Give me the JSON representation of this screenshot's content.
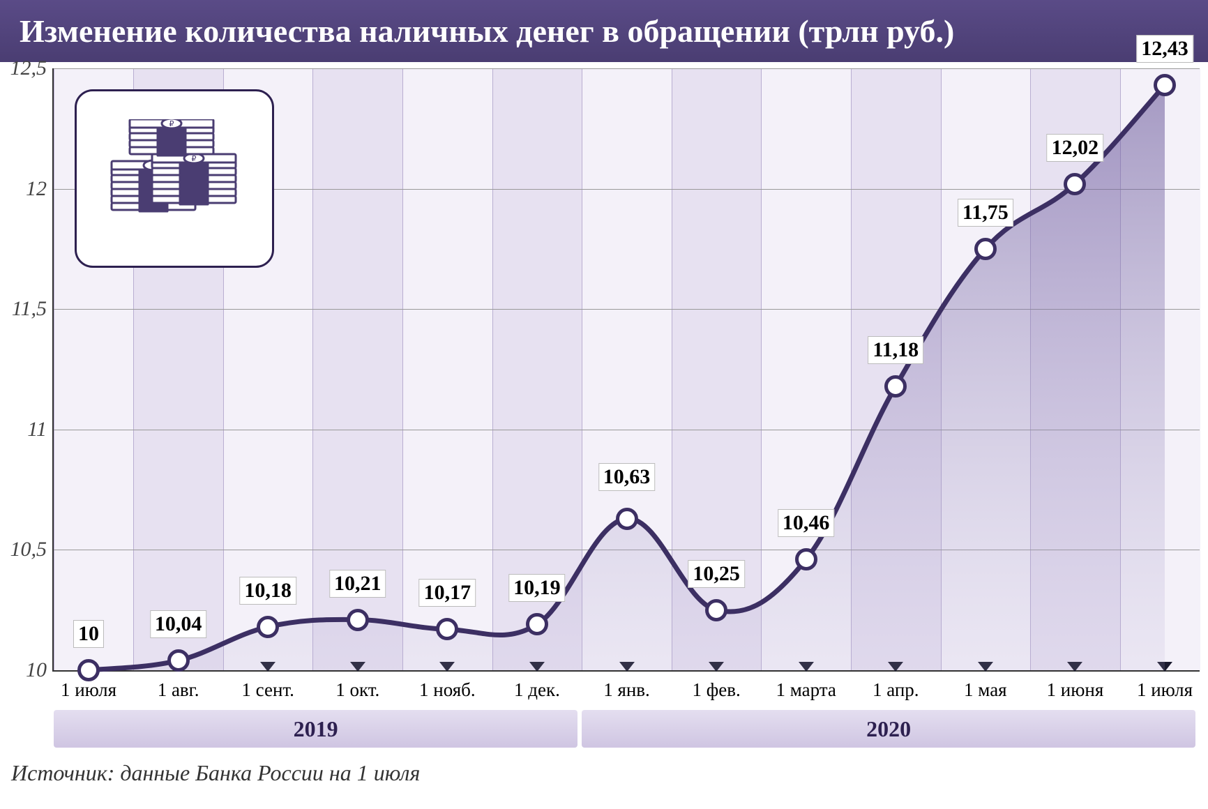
{
  "title": "Изменение количества наличных денег в обращении (трлн руб.)",
  "source": "Источник: данные Банка России на 1 июля",
  "chart": {
    "type": "line-area",
    "ylim": [
      10,
      12.5
    ],
    "yticks": [
      10,
      10.5,
      11,
      11.5,
      12,
      12.5
    ],
    "ytick_labels": [
      "10",
      "10,5",
      "11",
      "11,5",
      "12",
      "12,5"
    ],
    "ylabel_fontsize": 30,
    "xlabel_fontsize": 27,
    "title_fontsize": 46,
    "data_label_fontsize": 30,
    "background_color": "#ffffff",
    "stripe_light": "#f4f1f9",
    "stripe_dark": "#e7e1f1",
    "stripe_border": "#b9aed1",
    "grid_color": "#999999",
    "line_color": "#3c2f63",
    "line_width": 7,
    "marker_fill": "#ffffff",
    "marker_border": "#3c2f63",
    "marker_size": 22,
    "fill_gradient_top": "rgba(100,82,150,0.55)",
    "fill_gradient_bottom": "rgba(180,170,210,0.15)",
    "title_bg_top": "#5a4b87",
    "title_bg_bottom": "#4a3d72",
    "era_bg_top": "#e4def0",
    "era_bg_bottom": "#cfc5e2",
    "points": [
      {
        "x": "1 июля",
        "v": 10.0,
        "label": "10",
        "era": "2019"
      },
      {
        "x": "1 авг.",
        "v": 10.04,
        "label": "10,04",
        "era": "2019"
      },
      {
        "x": "1 сент.",
        "v": 10.18,
        "label": "10,18",
        "era": "2019"
      },
      {
        "x": "1 окт.",
        "v": 10.21,
        "label": "10,21",
        "era": "2019"
      },
      {
        "x": "1 нояб.",
        "v": 10.17,
        "label": "10,17",
        "era": "2019"
      },
      {
        "x": "1 дек.",
        "v": 10.19,
        "label": "10,19",
        "era": "2019"
      },
      {
        "x": "1 янв.",
        "v": 10.63,
        "label": "10,63",
        "era": "2020"
      },
      {
        "x": "1 фев.",
        "v": 10.25,
        "label": "10,25",
        "era": "2020"
      },
      {
        "x": "1 марта",
        "v": 10.46,
        "label": "10,46",
        "era": "2020"
      },
      {
        "x": "1 апр.",
        "v": 11.18,
        "label": "11,18",
        "era": "2020"
      },
      {
        "x": "1 мая",
        "v": 11.75,
        "label": "11,75",
        "era": "2020"
      },
      {
        "x": "1 июня",
        "v": 12.02,
        "label": "12,02",
        "era": "2020"
      },
      {
        "x": "1 июля",
        "v": 12.43,
        "label": "12,43",
        "era": "2020"
      }
    ],
    "eras": [
      {
        "label": "2019",
        "count": 6
      },
      {
        "label": "2020",
        "count": 7
      }
    ]
  }
}
